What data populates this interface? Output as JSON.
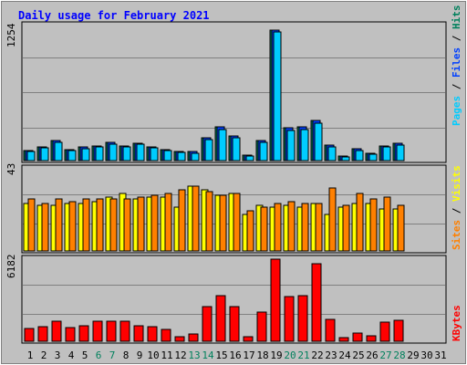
{
  "chart_data": {
    "type": "bar",
    "title": "Daily usage for February 2021",
    "days": [
      "1",
      "2",
      "3",
      "4",
      "5",
      "6",
      "7",
      "8",
      "9",
      "10",
      "11",
      "12",
      "13",
      "14",
      "15",
      "16",
      "17",
      "18",
      "19",
      "20",
      "21",
      "22",
      "23",
      "24",
      "25",
      "26",
      "27",
      "28",
      "29",
      "30",
      "31"
    ],
    "weekend_days": [
      "6",
      "7",
      "13",
      "14",
      "20",
      "21",
      "27",
      "28"
    ],
    "panels": {
      "top": {
        "max_label": "1254",
        "ymax": 1254,
        "legend": [
          "Pages",
          "Files",
          "Hits"
        ],
        "series": [
          {
            "name": "Hits",
            "color": "#00805c",
            "values": [
              98,
              129,
              189,
              104,
              126,
              136,
              172,
              139,
              166,
              131,
              106,
              87,
              83,
              211,
              315,
              230,
              53,
              185,
              1224,
              309,
              319,
              377,
              144,
              43,
              108,
              71,
              135,
              160,
              null,
              null,
              null
            ]
          },
          {
            "name": "Files",
            "color": "#0040ff",
            "values": [
              98,
              129,
              189,
              104,
              126,
              136,
              172,
              139,
              166,
              131,
              106,
              87,
              83,
              211,
              315,
              230,
              53,
              185,
              1224,
              309,
              319,
              377,
              144,
              43,
              108,
              71,
              135,
              160,
              null,
              null,
              null
            ]
          },
          {
            "name": "Pages",
            "color": "#00ccff",
            "values": [
              85,
              120,
              175,
              95,
              115,
              125,
              158,
              128,
              152,
              120,
              95,
              75,
              72,
              196,
              292,
              212,
              45,
              170,
              1210,
              285,
              295,
              356,
              132,
              35,
              98,
              62,
              126,
              150,
              null,
              null,
              null
            ]
          }
        ]
      },
      "middle": {
        "max_label": "43",
        "ymax": 43,
        "legend": [
          "Visits",
          "Sites"
        ],
        "series": [
          {
            "name": "Visits",
            "color": "#ffff00",
            "values": [
              25,
              24,
              24,
              25,
              25,
              26,
              28,
              30,
              27,
              28,
              28,
              23,
              34,
              32,
              29,
              30,
              19,
              24,
              23,
              24,
              23,
              25,
              19,
              23,
              25,
              25,
              22,
              22,
              null,
              null,
              null
            ]
          },
          {
            "name": "Sites",
            "color": "#ff8000",
            "values": [
              27,
              25,
              27,
              26,
              27,
              27,
              27,
              27,
              28,
              29,
              30,
              32,
              34,
              31,
              29,
              30,
              21,
              23,
              25,
              26,
              25,
              25,
              33,
              24,
              30,
              27,
              28,
              24,
              null,
              null,
              null
            ]
          }
        ]
      },
      "bottom": {
        "max_label": "6182",
        "ymax": 6182,
        "legend": [
          "KBytes"
        ],
        "series": [
          {
            "name": "KBytes",
            "color": "#ff0000",
            "values": [
              950,
              1080,
              1480,
              1020,
              1140,
              1520,
              1520,
              1520,
              1200,
              1080,
              880,
              330,
              550,
              2600,
              3450,
              2620,
              330,
              2170,
              6182,
              3400,
              3440,
              5840,
              1620,
              280,
              600,
              390,
              1460,
              1560,
              null,
              null,
              null
            ]
          }
        ]
      }
    }
  }
}
